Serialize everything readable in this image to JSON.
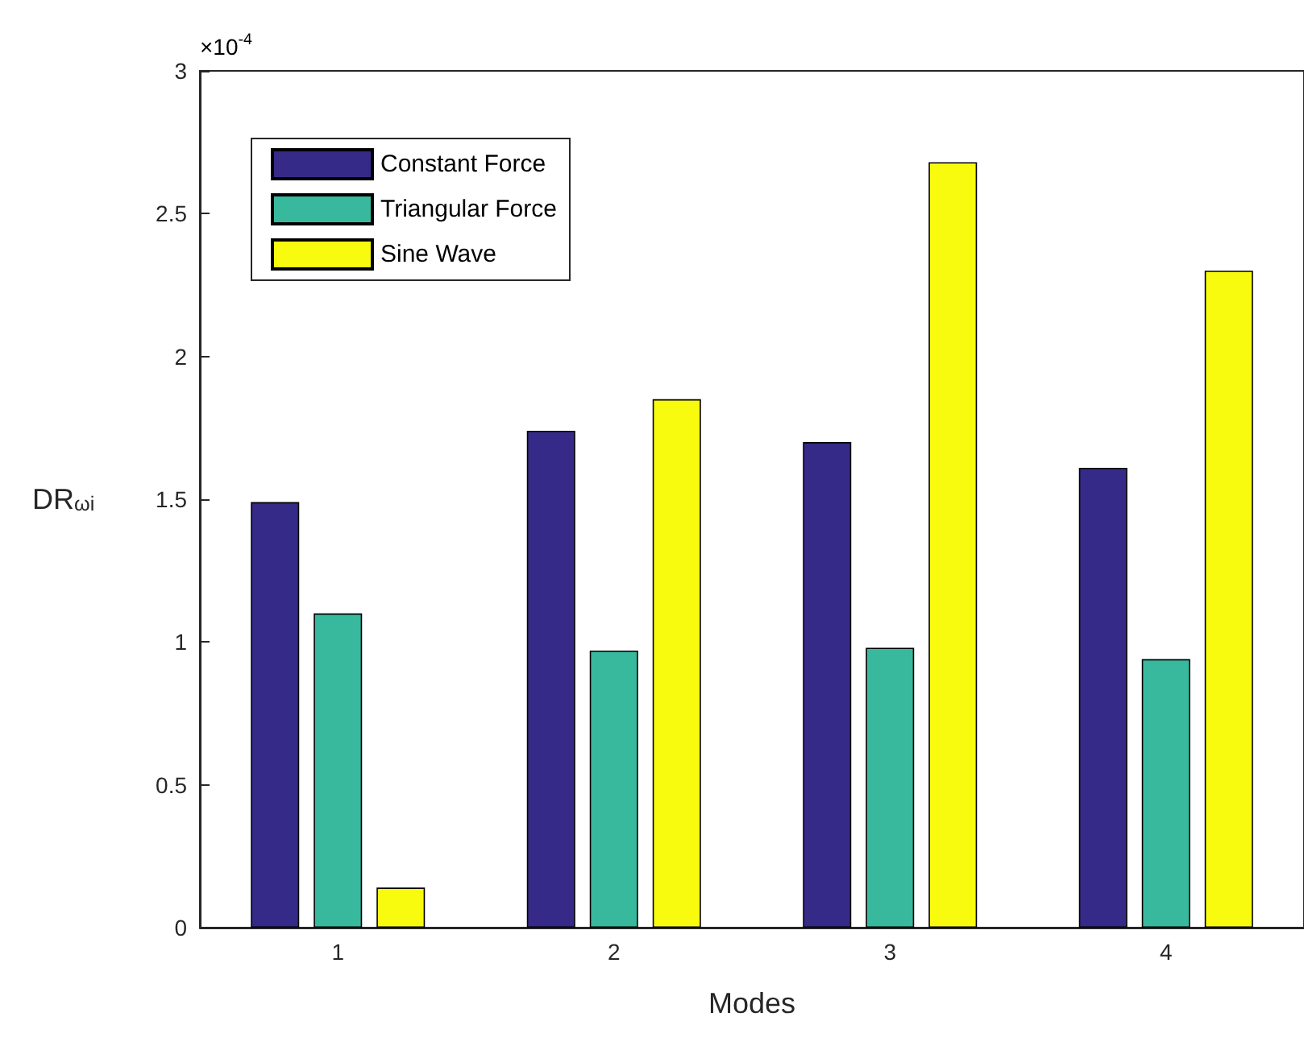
{
  "chart_data": {
    "type": "bar",
    "xlabel": "Modes",
    "ylabel": "DR$_{ωi}$",
    "categories": [
      "1",
      "2",
      "3",
      "4"
    ],
    "series": [
      {
        "name": "Constant Force",
        "color": "#352a87",
        "values": [
          1.49,
          1.74,
          1.7,
          1.61
        ]
      },
      {
        "name": "Triangular Force",
        "color": "#38b99e",
        "values": [
          1.1,
          0.97,
          0.98,
          0.94
        ]
      },
      {
        "name": "Sine Wave",
        "color": "#f9fb0e",
        "values": [
          0.14,
          1.85,
          2.68,
          2.3
        ]
      }
    ],
    "ylim": [
      0,
      3
    ],
    "yticks": [
      0,
      0.5,
      1,
      1.5,
      2,
      2.5,
      3
    ],
    "annotations": [
      "×10$^{-4}$"
    ],
    "legend": "top left",
    "grid": false
  }
}
